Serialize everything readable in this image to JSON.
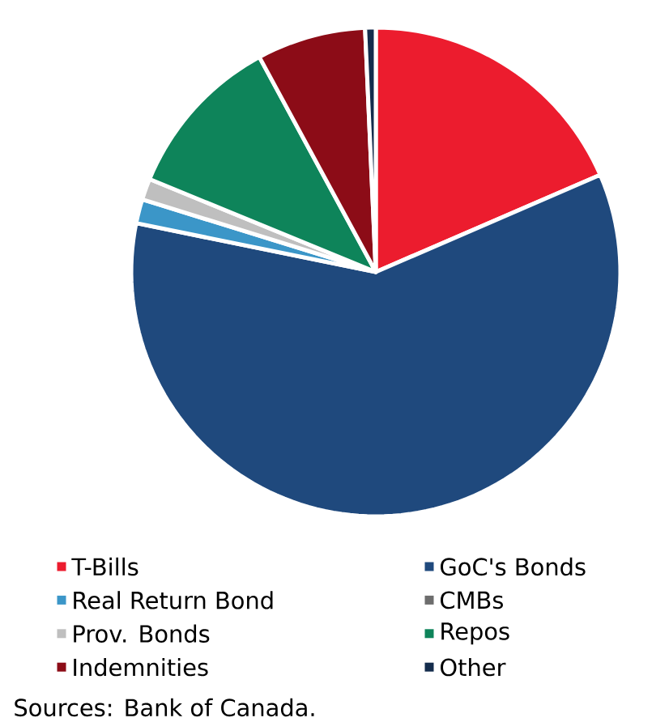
{
  "chart_data": {
    "type": "pie",
    "categories": [
      "T-Bills",
      "GoC's Bonds",
      "Real Return Bond",
      "CMBs",
      "Prov. Bonds",
      "Repos",
      "Indemnities",
      "Other"
    ],
    "values": [
      18.5,
      59.7,
      1.6,
      0,
      1.4,
      10.9,
      7.2,
      0.7
    ],
    "colors": [
      "#ec1c2e",
      "#1f497d",
      "#3b96c8",
      "#6d6d6d",
      "#bfbfbf",
      "#0e845a",
      "#8c0c17",
      "#142c4c"
    ],
    "legend": "bottom",
    "annotations": [
      "Sources: Bank of Canada."
    ]
  }
}
